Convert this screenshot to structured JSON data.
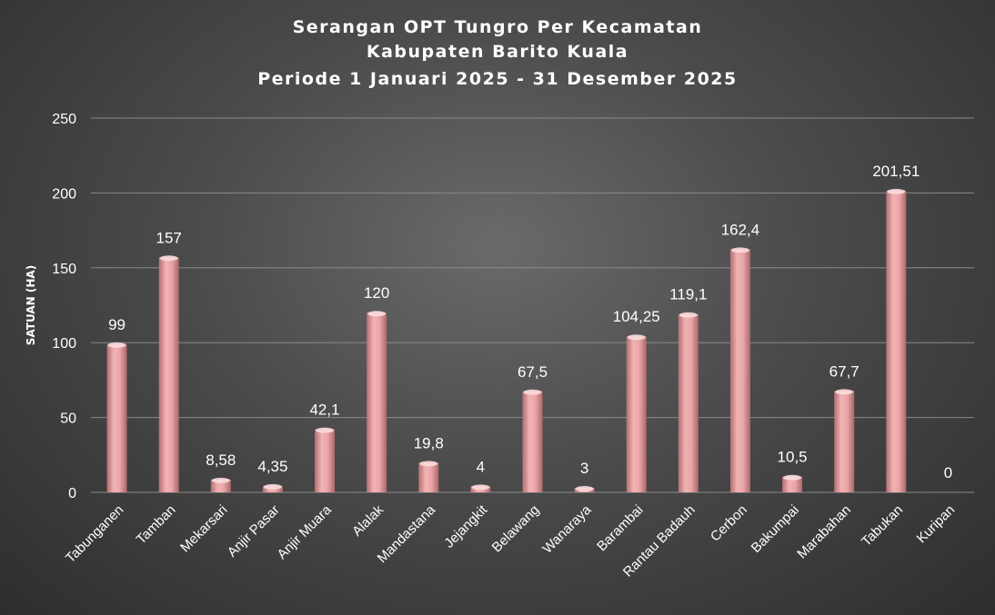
{
  "chart_data": {
    "type": "bar",
    "title_lines": [
      "Serangan OPT Tungro Per Kecamatan",
      "Kabupaten Barito Kuala",
      "Periode 1 Januari 2025 - 31 Desember 2025"
    ],
    "ylabel": "SATUAN (HA)",
    "xlabel": "",
    "ylim": [
      0,
      250
    ],
    "yticks": [
      0,
      50,
      100,
      150,
      200,
      250
    ],
    "grid": true,
    "legend": "none",
    "bar_color": "#e8a0a2",
    "categories": [
      "Tabunganen",
      "Tamban",
      "Mekarsari",
      "Anjir Pasar",
      "Anjir Muara",
      "Alalak",
      "Mandastana",
      "Jejangkit",
      "Belawang",
      "Wanaraya",
      "Barambai",
      "Rantau Badauh",
      "Cerbon",
      "Bakumpai",
      "Marabahan",
      "Tabukan",
      "Kuripan"
    ],
    "values": [
      99,
      157,
      8.58,
      4.35,
      42.1,
      120,
      19.8,
      4,
      67.5,
      3,
      104.25,
      119.1,
      162.4,
      10.5,
      67.7,
      201.51,
      0
    ],
    "data_labels": [
      "99",
      "157",
      "8,58",
      "4,35",
      "42,1",
      "120",
      "19,8",
      "4",
      "67,5",
      "3",
      "104,25",
      "119,1",
      "162,4",
      "10,5",
      "67,7",
      "201,51",
      "0"
    ]
  }
}
